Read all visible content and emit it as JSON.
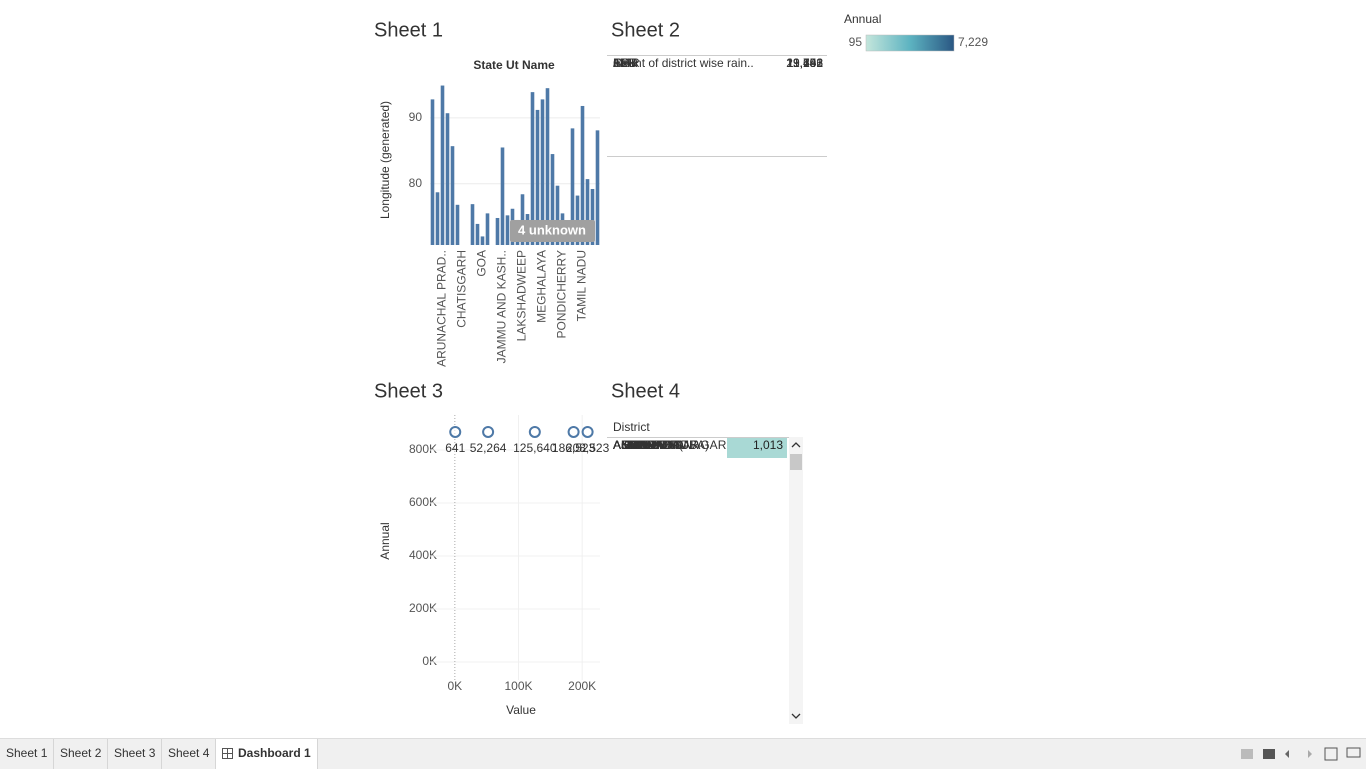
{
  "tabs": [
    "Sheet 1",
    "Sheet 2",
    "Sheet 3",
    "Sheet 4",
    "Dashboard 1"
  ],
  "active_tab": 4,
  "legend": {
    "title": "Annual",
    "min": 95,
    "max": {
      "value": 7229,
      "label": "7,229"
    },
    "colors": [
      "#c4e6dc",
      "#5db3c1",
      "#2a5783"
    ]
  },
  "chart_data": [
    {
      "type": "bar",
      "title": "Sheet 1",
      "x_label": "State Ut Name",
      "y_label": "Longitude (generated)",
      "categories": [
        null,
        null,
        "ARUNACHAL PRAD..",
        null,
        null,
        null,
        "CHATISGARH",
        null,
        null,
        null,
        "GOA",
        null,
        null,
        null,
        "JAMMU AND KASH..",
        null,
        null,
        null,
        "LAKSHADWEEP",
        null,
        null,
        null,
        "MEGHALAYA",
        null,
        null,
        null,
        "PONDICHERRY",
        null,
        null,
        null,
        "TAMIL NADU",
        null,
        null,
        null
      ],
      "values": [
        92.8,
        78.7,
        94.9,
        90.7,
        85.7,
        76.8,
        null,
        null,
        76.9,
        73.9,
        72.0,
        75.5,
        null,
        74.8,
        85.5,
        75.2,
        76.2,
        74.5,
        78.4,
        75.4,
        93.9,
        91.2,
        92.8,
        94.5,
        84.5,
        79.7,
        75.5,
        73.0,
        88.4,
        78.2,
        91.8,
        80.7,
        79.2,
        88.1
      ],
      "color": "#4e79a7",
      "ylim": [
        70.7,
        96.5
      ],
      "yticks": [
        80,
        90
      ],
      "grid": true,
      "annotation": "4 unknown"
    },
    {
      "type": "scatter",
      "title": "Sheet 3",
      "x_label": "Value",
      "y_label": "Annual",
      "x": [
        641,
        52264,
        125640,
        186523,
        208523
      ],
      "values": [
        868000,
        868000,
        868000,
        868000,
        868000
      ],
      "value_labels": [
        "641",
        "52,264",
        "125,640",
        "186,523",
        "208,523"
      ],
      "color": "#4e79a7",
      "xlim": [
        -39000,
        228000
      ],
      "ylim": [
        -68000,
        932000
      ],
      "xticks": [
        {
          "value": 0,
          "label": "0K"
        },
        {
          "value": 100000,
          "label": "100K"
        },
        {
          "value": 200000,
          "label": "200K"
        }
      ],
      "yticks": [
        {
          "value": 0,
          "label": "0K"
        },
        {
          "value": 200000,
          "label": "200K"
        },
        {
          "value": 400000,
          "label": "400K"
        },
        {
          "value": 600000,
          "label": "600K"
        },
        {
          "value": 800000,
          "label": "800K"
        }
      ],
      "grid": true
    }
  ],
  "sheet2": {
    "title": "Sheet 2",
    "rows": [
      [
        "APR",
        "29,193"
      ],
      [
        "Count of district wise rain..",
        "641"
      ],
      [
        "FEB",
        "13,451"
      ],
      [
        "JAN",
        "11,766"
      ],
      [
        "MAR",
        "19,252"
      ]
    ]
  },
  "sheet4": {
    "title": "Sheet 4",
    "header": "District",
    "rows": [
      {
        "district": "ADILABAD",
        "value": 1120,
        "label": "1,120"
      },
      {
        "district": "AGRA",
        "value": 775,
        "label": "775"
      },
      {
        "district": "AHMEDABAD",
        "value": 640,
        "label": "640"
      },
      {
        "district": "AHMEDNAGAR",
        "value": 573,
        "label": "573"
      },
      {
        "district": "AIZAWL",
        "value": 2814,
        "label": "2,814"
      },
      {
        "district": "AJMER",
        "value": 462,
        "label": "462"
      },
      {
        "district": "AKOLA",
        "value": 815,
        "label": "815"
      },
      {
        "district": "ALAPPUZHA",
        "value": 2841,
        "label": "2,841"
      },
      {
        "district": "ALIGARH",
        "value": 771,
        "label": "771"
      },
      {
        "district": "ALIRAJPUR(JBA)",
        "value": 864,
        "label": "864"
      },
      {
        "district": "ALLAHABAD",
        "value": 903,
        "label": "903"
      },
      {
        "district": "ALMORA",
        "value": 1157,
        "label": "1,157"
      },
      {
        "district": "ALWAR",
        "value": 631,
        "label": "631"
      },
      {
        "district": "AMBALA",
        "value": 1105,
        "label": "1,105"
      },
      {
        "district": "AMBEDKAR NAGAR",
        "value": 1013,
        "label": "1,013"
      }
    ]
  }
}
